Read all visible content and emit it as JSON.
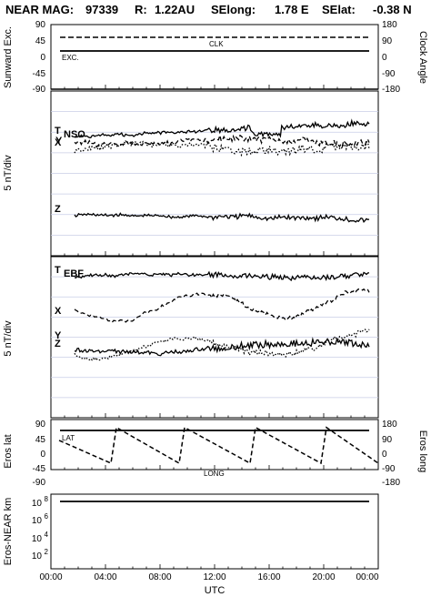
{
  "header": {
    "instrument": "NEAR MAG:",
    "doy": "97339",
    "r_label": "R:",
    "r_value": "1.22AU",
    "selong_label": "SElong:",
    "selong_value": "1.78 E",
    "selat_label": "SElat:",
    "selat_value": "-0.38 N"
  },
  "chart_data": [
    {
      "type": "line",
      "panel": "sunward-clock",
      "ylabel": "Sunward Exc.",
      "ylabel_right": "Clock Angle",
      "ylim": [
        -90,
        90
      ],
      "ylim_right": [
        -180,
        180
      ],
      "yticks": [
        "90",
        "45",
        "0",
        "-45",
        "-90"
      ],
      "yticks_right": [
        "180",
        "90",
        "0",
        "-90",
        "-180"
      ],
      "series": [
        {
          "name": "CLK",
          "style": "dashed",
          "x": [
            0,
            24
          ],
          "values": [
            45,
            45
          ]
        },
        {
          "name": "EXC.",
          "style": "solid",
          "x": [
            0,
            24
          ],
          "values": [
            10,
            10
          ]
        }
      ]
    },
    {
      "type": "line",
      "panel": "nso",
      "ylabel": "5 nT/div",
      "title": "NSO",
      "grid_lines": 7,
      "series": [
        {
          "name": "T",
          "style": "solid"
        },
        {
          "name": "X",
          "style": "dashed"
        },
        {
          "name": "Y",
          "style": "dotted"
        },
        {
          "name": "Z",
          "style": "solid"
        }
      ]
    },
    {
      "type": "line",
      "panel": "ebf",
      "ylabel": "5 nT/div",
      "title": "EBF",
      "grid_lines": 7,
      "series": [
        {
          "name": "T",
          "style": "solid"
        },
        {
          "name": "X",
          "style": "dashed"
        },
        {
          "name": "Y",
          "style": "dotted"
        },
        {
          "name": "Z",
          "style": "solid"
        }
      ]
    },
    {
      "type": "line",
      "panel": "eros-position",
      "ylabel": "Eros lat",
      "ylabel_right": "Eros long",
      "ylim": [
        -90,
        90
      ],
      "ylim_right": [
        -180,
        180
      ],
      "yticks": [
        "90",
        "45",
        "0",
        "-45",
        "-90"
      ],
      "yticks_right": [
        "180",
        "90",
        "0",
        "-90",
        "-180"
      ],
      "series": [
        {
          "name": "LAT",
          "style": "solid",
          "x": [
            0,
            24
          ],
          "values": [
            73,
            73
          ]
        },
        {
          "name": "LONG",
          "style": "dashed",
          "x": [
            0.1,
            4.4,
            4.8,
            9.4,
            9.8,
            14.6,
            15.0,
            19.8,
            20.2,
            24
          ],
          "values": [
            -180,
            -180,
            165,
            -180,
            165,
            -180,
            165,
            -180,
            165,
            -180
          ],
          "note_units": "degrees longitude"
        }
      ]
    },
    {
      "type": "line",
      "panel": "distance",
      "ylabel": "Eros-NEAR km",
      "yscale": "log",
      "yticks": [
        "10^8",
        "10^6",
        "10^4",
        "10^2"
      ],
      "series": [
        {
          "name": "distance",
          "style": "solid",
          "x": [
            0,
            24
          ],
          "values": [
            100000000,
            100000000
          ]
        }
      ]
    }
  ],
  "xaxis": {
    "label": "UTC",
    "ticks": [
      "00:00",
      "04:00",
      "08:00",
      "12:00",
      "16:00",
      "20:00",
      "00:00"
    ],
    "range_hours": [
      0,
      24
    ]
  },
  "labels": {
    "clk": "CLK",
    "exc": "EXC.",
    "lat": "LAT",
    "long": "LONG",
    "t": "T",
    "x": "X",
    "y": "Y",
    "z": "Z",
    "nso": "NSO",
    "ebf": "EBF",
    "sunward": "Sunward Exc.",
    "clock": "Clock Angle",
    "nt1": "5 nT/div",
    "nt2": "5 nT/div",
    "eroslat": "Eros lat",
    "eroslong": "Eros long",
    "dist": "Eros-NEAR km",
    "p10": "10",
    "e8": "8",
    "e6": "6",
    "e4": "4",
    "e2": "2"
  }
}
